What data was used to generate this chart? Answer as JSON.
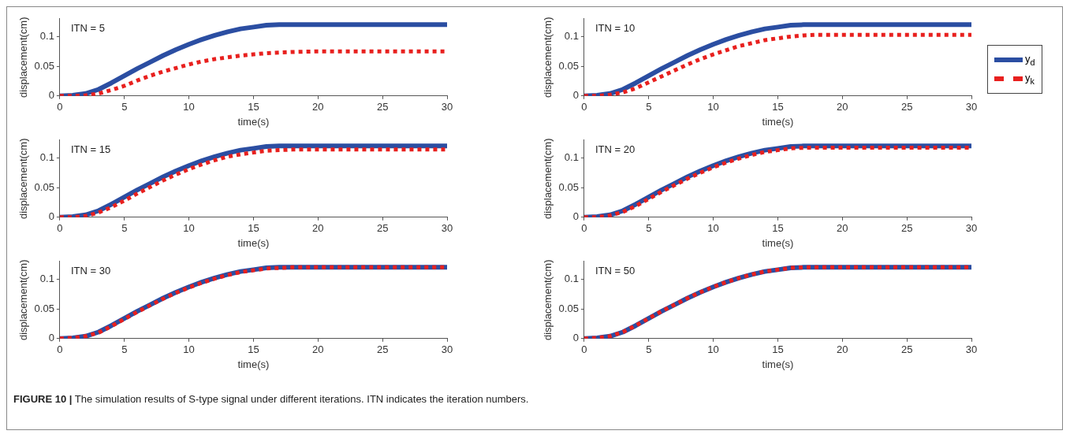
{
  "chart_data": [
    {
      "type": "line",
      "ylabel": "displacement(cm)",
      "xlabel": "time(s)",
      "annotations": [
        "ITN = 5"
      ],
      "xlim": [
        0,
        30
      ],
      "xticks": [
        0,
        5,
        10,
        15,
        20,
        25,
        30
      ],
      "ylim": [
        0,
        0.13
      ],
      "yticks": [
        0,
        0.05,
        0.1
      ],
      "grid": false,
      "legend": false,
      "marker": "none",
      "x": [
        0,
        1,
        2,
        3,
        4,
        5,
        6,
        7,
        8,
        9,
        10,
        11,
        12,
        13,
        14,
        15,
        16,
        17,
        18,
        20,
        25,
        30
      ],
      "series": [
        {
          "color": "#2b4ea2",
          "line_style": "solid",
          "values": [
            0,
            0.001,
            0.004,
            0.011,
            0.022,
            0.034,
            0.046,
            0.057,
            0.068,
            0.078,
            0.087,
            0.095,
            0.102,
            0.108,
            0.113,
            0.116,
            0.119,
            0.12,
            0.12,
            0.12,
            0.12,
            0.12
          ]
        },
        {
          "color": "#e8201e",
          "line_style": "dotted",
          "values": [
            0,
            0,
            0.001,
            0.004,
            0.01,
            0.017,
            0.026,
            0.034,
            0.041,
            0.047,
            0.053,
            0.058,
            0.062,
            0.065,
            0.068,
            0.07,
            0.072,
            0.073,
            0.074,
            0.075,
            0.075,
            0.075
          ]
        }
      ]
    },
    {
      "type": "line",
      "ylabel": "displacement(cm)",
      "xlabel": "time(s)",
      "annotations": [
        "ITN = 10"
      ],
      "xlim": [
        0,
        30
      ],
      "xticks": [
        0,
        5,
        10,
        15,
        20,
        25,
        30
      ],
      "ylim": [
        0,
        0.13
      ],
      "yticks": [
        0,
        0.05,
        0.1
      ],
      "grid": false,
      "legend": "right",
      "marker": "none",
      "x": [
        0,
        1,
        2,
        3,
        4,
        5,
        6,
        7,
        8,
        9,
        10,
        11,
        12,
        13,
        14,
        15,
        16,
        17,
        18,
        20,
        25,
        30
      ],
      "series": [
        {
          "name": "y$_{d}$",
          "color": "#2b4ea2",
          "line_style": "solid",
          "values": [
            0,
            0.001,
            0.004,
            0.011,
            0.022,
            0.034,
            0.046,
            0.057,
            0.068,
            0.078,
            0.087,
            0.095,
            0.102,
            0.108,
            0.113,
            0.116,
            0.119,
            0.12,
            0.12,
            0.12,
            0.12,
            0.12
          ]
        },
        {
          "name": "y$_{k}$",
          "color": "#e8201e",
          "line_style": "dotted",
          "values": [
            0,
            0,
            0.002,
            0.006,
            0.013,
            0.023,
            0.033,
            0.043,
            0.053,
            0.062,
            0.07,
            0.077,
            0.084,
            0.089,
            0.094,
            0.097,
            0.1,
            0.102,
            0.103,
            0.103,
            0.103,
            0.103
          ]
        }
      ]
    },
    {
      "type": "line",
      "ylabel": "displacement(cm)",
      "xlabel": "time(s)",
      "annotations": [
        "ITN = 15"
      ],
      "xlim": [
        0,
        30
      ],
      "xticks": [
        0,
        5,
        10,
        15,
        20,
        25,
        30
      ],
      "ylim": [
        0,
        0.13
      ],
      "yticks": [
        0,
        0.05,
        0.1
      ],
      "grid": false,
      "legend": false,
      "marker": "none",
      "x": [
        0,
        1,
        2,
        3,
        4,
        5,
        6,
        7,
        8,
        9,
        10,
        11,
        12,
        13,
        14,
        15,
        16,
        17,
        18,
        20,
        25,
        30
      ],
      "series": [
        {
          "color": "#2b4ea2",
          "line_style": "solid",
          "values": [
            0,
            0.001,
            0.004,
            0.011,
            0.022,
            0.034,
            0.046,
            0.057,
            0.068,
            0.078,
            0.087,
            0.095,
            0.102,
            0.108,
            0.113,
            0.116,
            0.119,
            0.12,
            0.12,
            0.12,
            0.12,
            0.12
          ]
        },
        {
          "color": "#e8201e",
          "line_style": "dotted",
          "values": [
            0,
            0,
            0.002,
            0.008,
            0.017,
            0.028,
            0.04,
            0.051,
            0.062,
            0.072,
            0.081,
            0.089,
            0.096,
            0.102,
            0.106,
            0.109,
            0.112,
            0.113,
            0.114,
            0.114,
            0.114,
            0.114
          ]
        }
      ]
    },
    {
      "type": "line",
      "ylabel": "displacement(cm)",
      "xlabel": "time(s)",
      "annotations": [
        "ITN = 20"
      ],
      "xlim": [
        0,
        30
      ],
      "xticks": [
        0,
        5,
        10,
        15,
        20,
        25,
        30
      ],
      "ylim": [
        0,
        0.13
      ],
      "yticks": [
        0,
        0.05,
        0.1
      ],
      "grid": false,
      "legend": false,
      "marker": "none",
      "x": [
        0,
        1,
        2,
        3,
        4,
        5,
        6,
        7,
        8,
        9,
        10,
        11,
        12,
        13,
        14,
        15,
        16,
        17,
        18,
        20,
        25,
        30
      ],
      "series": [
        {
          "color": "#2b4ea2",
          "line_style": "solid",
          "values": [
            0,
            0.001,
            0.004,
            0.011,
            0.022,
            0.034,
            0.046,
            0.057,
            0.068,
            0.078,
            0.087,
            0.095,
            0.102,
            0.108,
            0.113,
            0.116,
            0.119,
            0.12,
            0.12,
            0.12,
            0.12,
            0.12
          ]
        },
        {
          "color": "#e8201e",
          "line_style": "dotted",
          "values": [
            0,
            0,
            0.003,
            0.009,
            0.019,
            0.031,
            0.043,
            0.054,
            0.065,
            0.075,
            0.084,
            0.092,
            0.099,
            0.105,
            0.11,
            0.113,
            0.116,
            0.117,
            0.117,
            0.117,
            0.117,
            0.117
          ]
        }
      ]
    },
    {
      "type": "line",
      "ylabel": "displacement(cm)",
      "xlabel": "time(s)",
      "annotations": [
        "ITN = 30"
      ],
      "xlim": [
        0,
        30
      ],
      "xticks": [
        0,
        5,
        10,
        15,
        20,
        25,
        30
      ],
      "ylim": [
        0,
        0.13
      ],
      "yticks": [
        0,
        0.05,
        0.1
      ],
      "grid": false,
      "legend": false,
      "marker": "none",
      "x": [
        0,
        1,
        2,
        3,
        4,
        5,
        6,
        7,
        8,
        9,
        10,
        11,
        12,
        13,
        14,
        15,
        16,
        17,
        18,
        20,
        25,
        30
      ],
      "series": [
        {
          "color": "#2b4ea2",
          "line_style": "solid",
          "values": [
            0,
            0.001,
            0.004,
            0.011,
            0.022,
            0.034,
            0.046,
            0.057,
            0.068,
            0.078,
            0.087,
            0.095,
            0.102,
            0.108,
            0.113,
            0.116,
            0.119,
            0.12,
            0.12,
            0.12,
            0.12,
            0.12
          ]
        },
        {
          "color": "#e8201e",
          "line_style": "dotted",
          "values": [
            0,
            0.001,
            0.004,
            0.01,
            0.021,
            0.033,
            0.045,
            0.056,
            0.067,
            0.077,
            0.086,
            0.094,
            0.101,
            0.107,
            0.112,
            0.115,
            0.118,
            0.119,
            0.12,
            0.12,
            0.12,
            0.12
          ]
        }
      ]
    },
    {
      "type": "line",
      "ylabel": "displacement(cm)",
      "xlabel": "time(s)",
      "annotations": [
        "ITN = 50",
        "FIGURE 10 | The simulation results of S-type signal under different iterations. ITN indicates the iteration numbers."
      ],
      "xlim": [
        0,
        30
      ],
      "xticks": [
        0,
        5,
        10,
        15,
        20,
        25,
        30
      ],
      "ylim": [
        0,
        0.13
      ],
      "yticks": [
        0,
        0.05,
        0.1
      ],
      "grid": false,
      "legend": false,
      "marker": "none",
      "x": [
        0,
        1,
        2,
        3,
        4,
        5,
        6,
        7,
        8,
        9,
        10,
        11,
        12,
        13,
        14,
        15,
        16,
        17,
        18,
        20,
        25,
        30
      ],
      "series": [
        {
          "color": "#2b4ea2",
          "line_style": "solid",
          "values": [
            0,
            0.001,
            0.004,
            0.011,
            0.022,
            0.034,
            0.046,
            0.057,
            0.068,
            0.078,
            0.087,
            0.095,
            0.102,
            0.108,
            0.113,
            0.116,
            0.119,
            0.12,
            0.12,
            0.12,
            0.12,
            0.12
          ]
        },
        {
          "color": "#e8201e",
          "line_style": "dotted",
          "values": [
            0,
            0.001,
            0.004,
            0.011,
            0.022,
            0.034,
            0.046,
            0.057,
            0.068,
            0.078,
            0.087,
            0.095,
            0.102,
            0.108,
            0.113,
            0.116,
            0.119,
            0.12,
            0.12,
            0.12,
            0.12,
            0.12
          ]
        }
      ]
    }
  ]
}
